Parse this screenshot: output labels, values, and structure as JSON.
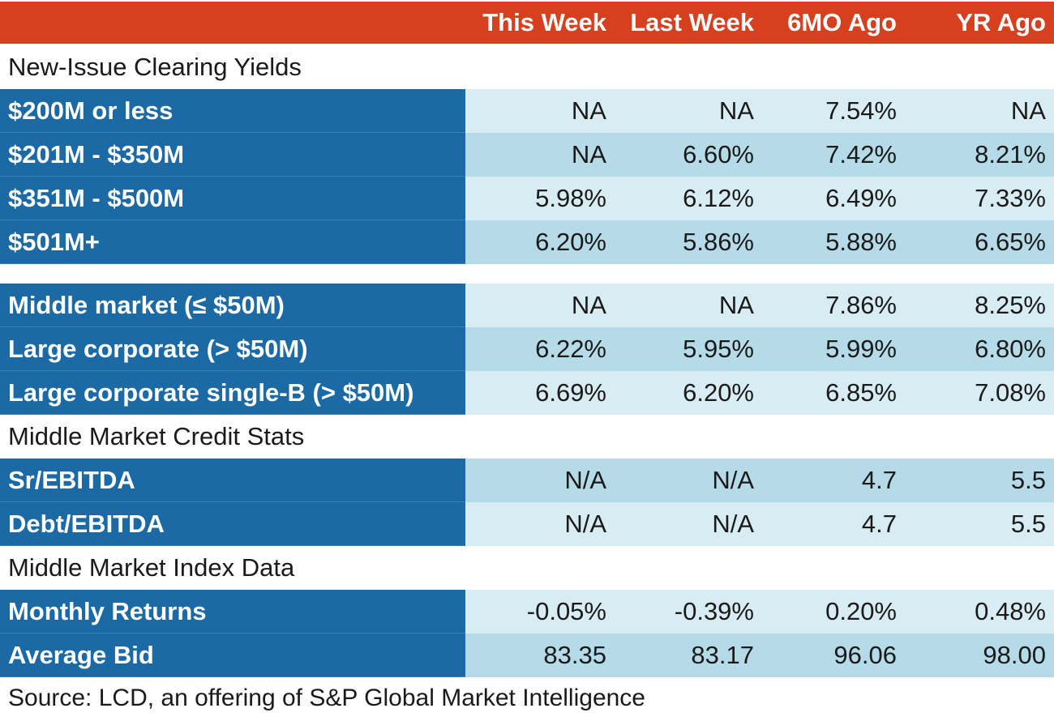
{
  "columns": [
    "This Week",
    "Last Week",
    "6MO Ago",
    "YR Ago"
  ],
  "sections": [
    {
      "title": "New-Issue Clearing Yields",
      "rows": [
        {
          "label": "$200M or less",
          "values": [
            "NA",
            "NA",
            "7.54%",
            "NA"
          ]
        },
        {
          "label": "$201M - $350M",
          "values": [
            "NA",
            "6.60%",
            "7.42%",
            "8.21%"
          ]
        },
        {
          "label": "$351M - $500M",
          "values": [
            "5.98%",
            "6.12%",
            "6.49%",
            "7.33%"
          ]
        },
        {
          "label": "$501M+",
          "values": [
            "6.20%",
            "5.86%",
            "5.88%",
            "6.65%"
          ]
        }
      ],
      "rows_b": [
        {
          "label": "Middle market (≤ $50M)",
          "values": [
            "NA",
            "NA",
            "7.86%",
            "8.25%"
          ]
        },
        {
          "label": "Large corporate (> $50M)",
          "values": [
            "6.22%",
            "5.95%",
            "5.99%",
            "6.80%"
          ]
        },
        {
          "label": "Large corporate single-B (> $50M)",
          "values": [
            "6.69%",
            "6.20%",
            "6.85%",
            "7.08%"
          ]
        }
      ]
    },
    {
      "title": "Middle Market Credit Stats",
      "rows": [
        {
          "label": "Sr/EBITDA",
          "values": [
            "N/A",
            "N/A",
            "4.7",
            "5.5"
          ]
        },
        {
          "label": "Debt/EBITDA",
          "values": [
            "N/A",
            "N/A",
            "4.7",
            "5.5"
          ]
        }
      ]
    },
    {
      "title": "Middle Market Index Data",
      "rows": [
        {
          "label": "Monthly Returns",
          "values": [
            "-0.05%",
            "-0.39%",
            "0.20%",
            "0.48%"
          ]
        },
        {
          "label": "Average Bid",
          "values": [
            "83.35",
            "83.17",
            "96.06",
            "98.00"
          ]
        }
      ]
    }
  ],
  "source": "Source: LCD, an offering of S&P Global Market Intelligence",
  "colors": {
    "header": "#d6401f",
    "label_bg": "#1c6aa5",
    "row_light": "#d8ecf3",
    "row_dark": "#b5dbe8"
  }
}
